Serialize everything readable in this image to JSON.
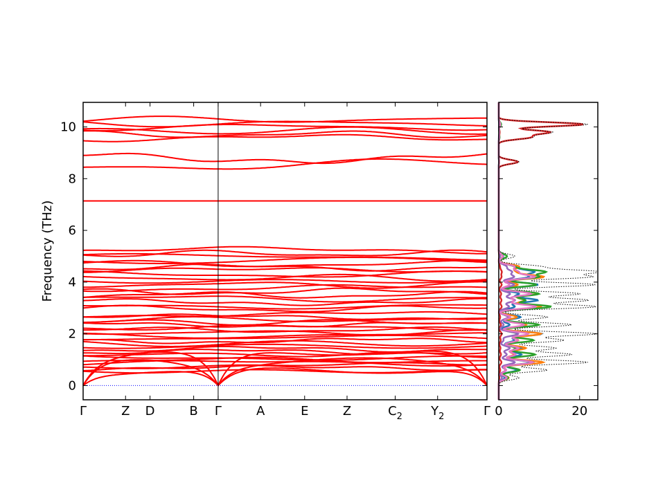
{
  "chart_data": [
    {
      "type": "line",
      "subtype": "phonon-band-structure",
      "title": "",
      "xlabel": "",
      "ylabel": "Frequency (THz)",
      "ylim": [
        -0.55,
        10.95
      ],
      "yticks": [
        0,
        2,
        4,
        6,
        8,
        10
      ],
      "grid": false,
      "legend": "none",
      "segments": [
        {
          "from": "Γ",
          "to": "Z",
          "length": 0.104
        },
        {
          "from": "Z",
          "to": "D",
          "length": 0.06
        },
        {
          "from": "D",
          "to": "B",
          "length": 0.107
        },
        {
          "from": "B",
          "to": "Γ",
          "length": 0.06
        },
        {
          "from": "Γ",
          "to": "A",
          "length": 0.104
        },
        {
          "from": "A",
          "to": "E",
          "length": 0.108
        },
        {
          "from": "E",
          "to": "Z",
          "length": 0.104
        },
        {
          "from": "Z",
          "to": "C₂",
          "length": 0.118
        },
        {
          "from": "C₂",
          "to": "Y₂",
          "length": 0.104
        },
        {
          "from": "Y₂",
          "to": "Γ",
          "length": 0.121
        }
      ],
      "xticks": [
        {
          "label": "Γ",
          "base": "Γ",
          "sub": ""
        },
        {
          "label": "Z",
          "base": "Z",
          "sub": ""
        },
        {
          "label": "D",
          "base": "D",
          "sub": ""
        },
        {
          "label": "B",
          "base": "B",
          "sub": ""
        },
        {
          "label": "Γ",
          "base": "Γ",
          "sub": ""
        },
        {
          "label": "A",
          "base": "A",
          "sub": ""
        },
        {
          "label": "E",
          "base": "E",
          "sub": ""
        },
        {
          "label": "Z",
          "base": "Z",
          "sub": ""
        },
        {
          "label": "C2",
          "base": "C",
          "sub": "2"
        },
        {
          "label": "Y2",
          "base": "Y",
          "sub": "2"
        },
        {
          "label": "Γ",
          "base": "Γ",
          "sub": ""
        }
      ],
      "reference_line": {
        "y": 0,
        "color": "#0000ff",
        "style": "dotted"
      },
      "band_color": "#ff0000",
      "band_groups": [
        {
          "name": "acoustic",
          "count": 3,
          "gamma_start": 0,
          "ymin": 0,
          "ymax": 1.5
        },
        {
          "name": "low-optical",
          "count": 14,
          "ymin": 0.5,
          "ymax": 2.0
        },
        {
          "name": "mid-optical",
          "count": 8,
          "ymin": 2.0,
          "ymax": 2.8
        },
        {
          "name": "upper-optical",
          "count": 18,
          "ymin": 2.9,
          "ymax": 5.3
        },
        {
          "name": "isolated",
          "count": 1,
          "ymin": 7.13,
          "ymax": 7.15
        },
        {
          "name": "pair",
          "count": 2,
          "ymin": 8.4,
          "ymax": 8.95
        },
        {
          "name": "top",
          "count": 6,
          "ymin": 9.5,
          "ymax": 10.35
        }
      ]
    },
    {
      "type": "line",
      "subtype": "projected-density-of-states",
      "title": "",
      "xlabel": "",
      "ylabel": "",
      "xlim": [
        0,
        24.5
      ],
      "ylim": [
        -0.55,
        10.95
      ],
      "xticks": [
        0,
        20
      ],
      "grid": false,
      "legend": "none",
      "orientation": "horizontal",
      "total": {
        "color": "#000000",
        "style": "dotted"
      },
      "series_colors": [
        "#1f77b4",
        "#ff7f0e",
        "#2ca02c",
        "#d62728",
        "#9467bd",
        "#e377c2"
      ],
      "peaks": [
        {
          "y": 10.1,
          "total": 22.0
        },
        {
          "y": 9.8,
          "total": 13.0
        },
        {
          "y": 9.6,
          "total": 8.0
        },
        {
          "y": 8.65,
          "total": 5.0
        },
        {
          "y": 5.0,
          "total": 4.0
        },
        {
          "y": 4.6,
          "total": 10.0
        },
        {
          "y": 4.4,
          "total": 24.0
        },
        {
          "y": 4.2,
          "total": 22.0
        },
        {
          "y": 3.9,
          "total": 24.0
        },
        {
          "y": 3.55,
          "total": 20.0
        },
        {
          "y": 3.3,
          "total": 22.0
        },
        {
          "y": 3.05,
          "total": 24.0
        },
        {
          "y": 2.65,
          "total": 12.0
        },
        {
          "y": 2.35,
          "total": 18.0
        },
        {
          "y": 2.0,
          "total": 24.0
        },
        {
          "y": 1.75,
          "total": 16.0
        },
        {
          "y": 1.45,
          "total": 14.0
        },
        {
          "y": 1.2,
          "total": 18.0
        },
        {
          "y": 0.9,
          "total": 22.0
        },
        {
          "y": 0.6,
          "total": 12.0
        },
        {
          "y": 0.3,
          "total": 5.0
        }
      ]
    }
  ]
}
